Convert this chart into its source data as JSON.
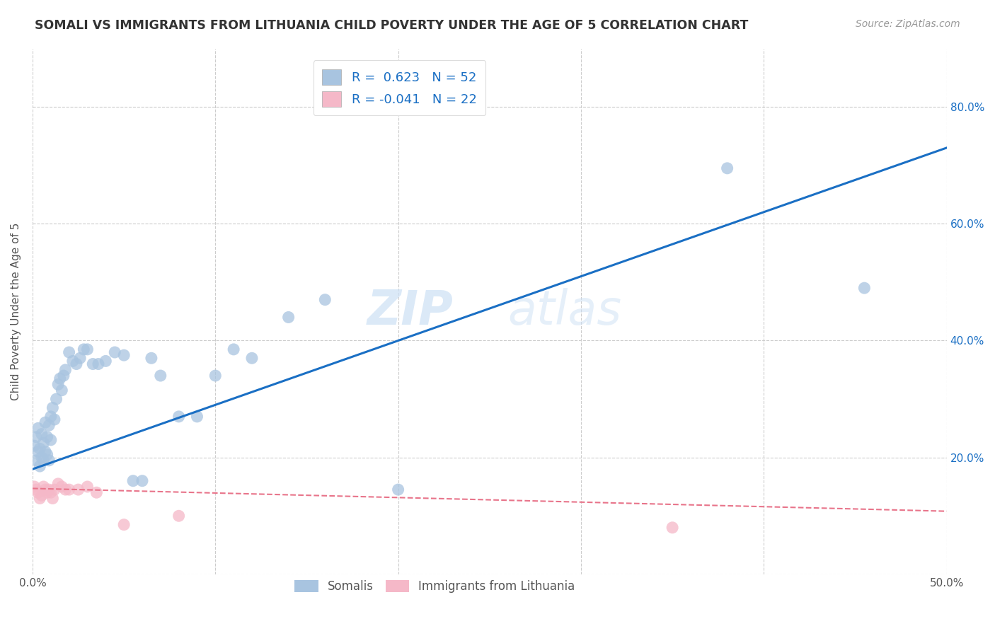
{
  "title": "SOMALI VS IMMIGRANTS FROM LITHUANIA CHILD POVERTY UNDER THE AGE OF 5 CORRELATION CHART",
  "source": "Source: ZipAtlas.com",
  "ylabel": "Child Poverty Under the Age of 5",
  "xlim": [
    0.0,
    0.5
  ],
  "ylim": [
    0.0,
    0.9
  ],
  "xticks": [
    0.0,
    0.1,
    0.2,
    0.3,
    0.4,
    0.5
  ],
  "xticklabels": [
    "0.0%",
    "",
    "",
    "",
    "",
    "50.0%"
  ],
  "yticks": [
    0.0,
    0.2,
    0.4,
    0.6,
    0.8
  ],
  "yticklabels": [
    "",
    "20.0%",
    "40.0%",
    "60.0%",
    "80.0%"
  ],
  "somali_R": 0.623,
  "somali_N": 52,
  "lithuania_R": -0.041,
  "lithuania_N": 22,
  "somali_color": "#a8c4e0",
  "somali_line_color": "#1a6fc4",
  "lithuania_color": "#f5b8c8",
  "lithuania_line_color": "#e8748a",
  "background_color": "#ffffff",
  "grid_color": "#cccccc",
  "watermark_zip": "ZIP",
  "watermark_atlas": "atlas",
  "somali_x": [
    0.001,
    0.002,
    0.002,
    0.003,
    0.003,
    0.004,
    0.004,
    0.005,
    0.005,
    0.006,
    0.006,
    0.007,
    0.007,
    0.008,
    0.008,
    0.009,
    0.009,
    0.01,
    0.01,
    0.011,
    0.012,
    0.013,
    0.014,
    0.015,
    0.016,
    0.017,
    0.018,
    0.02,
    0.022,
    0.024,
    0.026,
    0.028,
    0.03,
    0.033,
    0.036,
    0.04,
    0.045,
    0.05,
    0.055,
    0.06,
    0.065,
    0.07,
    0.08,
    0.09,
    0.1,
    0.11,
    0.12,
    0.14,
    0.16,
    0.2,
    0.38,
    0.455
  ],
  "somali_y": [
    0.22,
    0.195,
    0.235,
    0.21,
    0.25,
    0.185,
    0.215,
    0.2,
    0.24,
    0.195,
    0.225,
    0.21,
    0.26,
    0.205,
    0.235,
    0.195,
    0.255,
    0.27,
    0.23,
    0.285,
    0.265,
    0.3,
    0.325,
    0.335,
    0.315,
    0.34,
    0.35,
    0.38,
    0.365,
    0.36,
    0.37,
    0.385,
    0.385,
    0.36,
    0.36,
    0.365,
    0.38,
    0.375,
    0.16,
    0.16,
    0.37,
    0.34,
    0.27,
    0.27,
    0.34,
    0.385,
    0.37,
    0.44,
    0.47,
    0.145,
    0.695,
    0.49
  ],
  "lithuania_x": [
    0.001,
    0.002,
    0.003,
    0.004,
    0.005,
    0.006,
    0.007,
    0.008,
    0.009,
    0.01,
    0.011,
    0.012,
    0.014,
    0.016,
    0.018,
    0.02,
    0.025,
    0.03,
    0.035,
    0.05,
    0.08,
    0.35
  ],
  "lithuania_y": [
    0.15,
    0.145,
    0.14,
    0.13,
    0.135,
    0.15,
    0.145,
    0.14,
    0.145,
    0.14,
    0.13,
    0.145,
    0.155,
    0.15,
    0.145,
    0.145,
    0.145,
    0.15,
    0.14,
    0.085,
    0.1,
    0.08
  ],
  "somali_line_x0": 0.0,
  "somali_line_y0": 0.18,
  "somali_line_x1": 0.5,
  "somali_line_y1": 0.73,
  "lith_line_x0": 0.0,
  "lith_line_y0": 0.147,
  "lith_line_x1": 0.5,
  "lith_line_y1": 0.108
}
